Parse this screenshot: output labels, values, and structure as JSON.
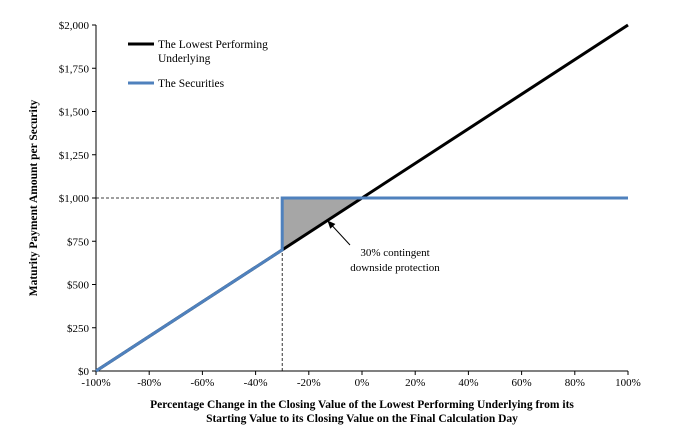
{
  "chart_data": {
    "type": "line",
    "title": "",
    "xlabel": [
      "Percentage Change in the Closing Value of the Lowest Performing Underlying from its",
      "Starting Value to its Closing Value on the Final Calculation Day"
    ],
    "ylabel": "Maturity Payment Amount per Security",
    "xlim": [
      -100,
      100
    ],
    "ylim": [
      0,
      2000
    ],
    "x_ticks": [
      -100,
      -80,
      -60,
      -40,
      -20,
      0,
      20,
      40,
      60,
      80,
      100
    ],
    "x_tick_labels": [
      "-100%",
      "-80%",
      "-60%",
      "-40%",
      "-20%",
      "0%",
      "20%",
      "40%",
      "60%",
      "80%",
      "100%"
    ],
    "y_ticks": [
      0,
      250,
      500,
      750,
      1000,
      1250,
      1500,
      1750,
      2000
    ],
    "y_tick_labels": [
      "$0",
      "$250",
      "$500",
      "$750",
      "$1,000",
      "$1,250",
      "$1,500",
      "$1,750",
      "$2,000"
    ],
    "grid": false,
    "legend_position": "top-left",
    "series": [
      {
        "name": "The Lowest Performing Underlying",
        "legend_lines": [
          "The Lowest Performing",
          "Underlying"
        ],
        "color": "#000000",
        "x": [
          -100,
          100
        ],
        "y": [
          0,
          2000
        ]
      },
      {
        "name": "The Securities",
        "legend_lines": [
          "The Securities"
        ],
        "color": "#4f81bd",
        "x": [
          -100,
          -30,
          -30,
          100
        ],
        "y": [
          0,
          700,
          1000,
          1000
        ]
      }
    ],
    "reference_lines": [
      {
        "type": "horizontal",
        "y": 1000,
        "x_from": -100,
        "x_to": -30,
        "style": "dashed"
      },
      {
        "type": "vertical",
        "x": -30,
        "y_from": 0,
        "y_to": 1000,
        "style": "dashed"
      }
    ],
    "shaded_region": {
      "points": [
        [
          -30,
          700
        ],
        [
          -30,
          1000
        ],
        [
          0,
          1000
        ]
      ],
      "color": "#a6a6a6"
    },
    "annotation": {
      "lines": [
        "30% contingent",
        "downside protection"
      ],
      "arrow_to": [
        -13,
        870
      ]
    }
  }
}
